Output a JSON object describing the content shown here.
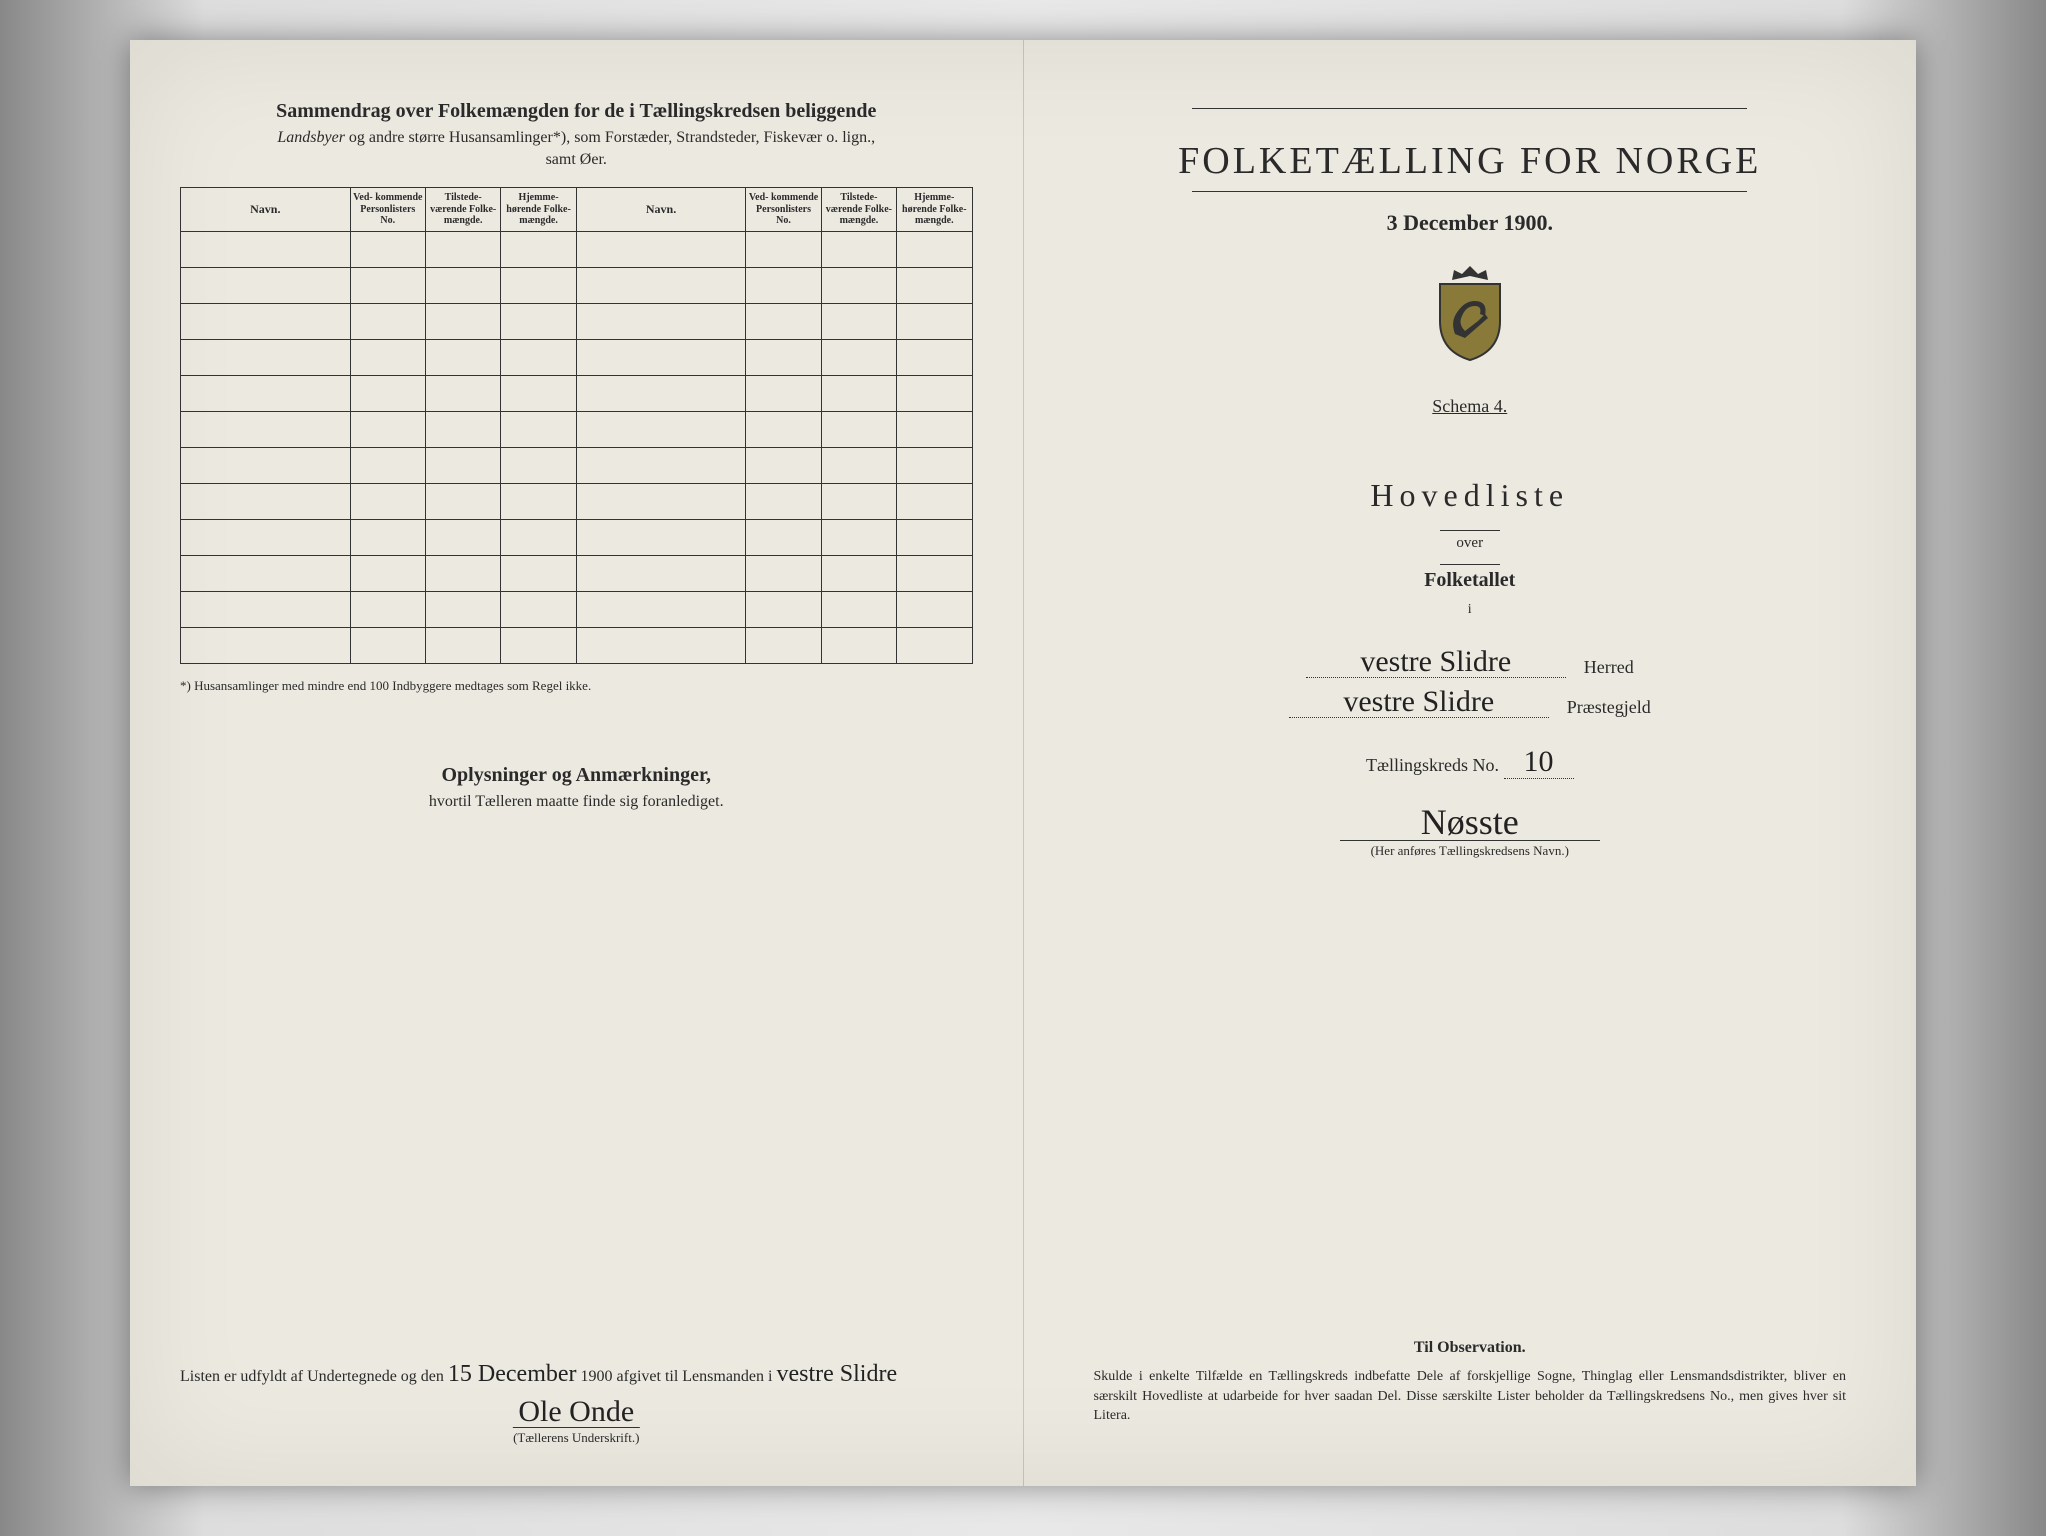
{
  "left": {
    "summary_title": "Sammendrag over Folkemængden for de i Tællingskredsen beliggende",
    "summary_sub1_prefix_italic": "Landsbyer",
    "summary_sub1_rest": " og andre større Husansamlinger*), som Forstæder, Strandsteder, Fiskevær o. lign.,",
    "summary_sub2": "samt Øer.",
    "columns": {
      "navn": "Navn.",
      "personlister": "Ved-\nkommende\nPersonlisters\nNo.",
      "tilstede": "Tilstede-\nværende\nFolke-\nmængde.",
      "hjemme": "Hjemme-\nhørende\nFolke-\nmængde."
    },
    "row_count": 12,
    "footnote": "*) Husansamlinger med mindre end 100 Indbyggere medtages som Regel ikke.",
    "oplys_title": "Oplysninger og Anmærkninger,",
    "oplys_sub": "hvortil Tælleren maatte finde sig foranlediget.",
    "listen_prefix": "Listen er udfyldt af Undertegnede og den ",
    "listen_date_hand": "15 December",
    "listen_year": " 1900 afgivet til Lensmanden i ",
    "listen_place_hand": "vestre Slidre",
    "signature": "Ole Onde",
    "sig_caption": "(Tællerens Underskrift.)"
  },
  "right": {
    "main_title": "FOLKETÆLLING FOR NORGE",
    "date": "3 December 1900.",
    "schema": "Schema 4.",
    "hovedliste": "Hovedliste",
    "over": "over",
    "folketallet": "Folketallet",
    "i": "i",
    "herred_hand": "vestre Slidre",
    "herred_label": "Herred",
    "praeste_hand": "vestre Slidre",
    "praeste_label": "Præstegjeld",
    "kreds_label": "Tællingskreds No.",
    "kreds_no": "10",
    "kreds_name_hand": "Nøsste",
    "kreds_caption": "(Her anføres Tællingskredsens Navn.)",
    "obs_title": "Til Observation.",
    "obs_body": "Skulde i enkelte Tilfælde en Tællingskreds indbefatte Dele af forskjellige Sogne, Thinglag eller Lensmandsdistrikter, bliver en særskilt Hovedliste at udarbeide for hver saadan Del. Disse særskilte Lister beholder da Tællingskredsens No., men gives hver sit Litera."
  },
  "colors": {
    "paper": "#ece9e0",
    "ink": "#2a2a2a",
    "scan_dark": "#1a1a1a"
  }
}
